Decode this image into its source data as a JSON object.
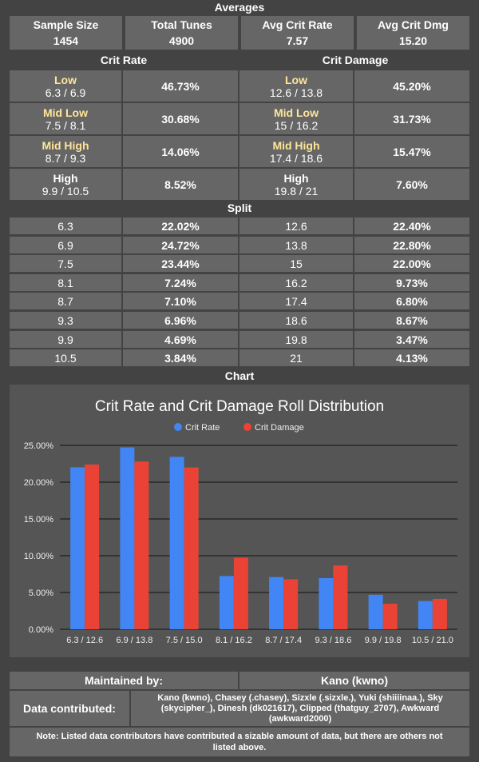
{
  "averages": {
    "title": "Averages",
    "headers": [
      "Sample Size",
      "Total Tunes",
      "Avg Crit Rate",
      "Avg Crit Dmg"
    ],
    "values": [
      "1454",
      "4900",
      "7.57",
      "15.20"
    ]
  },
  "tiers": {
    "cr_title": "Crit Rate",
    "cd_title": "Crit Damage",
    "rows": [
      {
        "name": "Low",
        "cr_range": "6.3 / 6.9",
        "cr_pct": "46.73%",
        "cd_range": "12.6 / 13.8",
        "cd_pct": "45.20%"
      },
      {
        "name": "Mid Low",
        "cr_range": "7.5 / 8.1",
        "cr_pct": "30.68%",
        "cd_range": "15 / 16.2",
        "cd_pct": "31.73%"
      },
      {
        "name": "Mid High",
        "cr_range": "8.7 / 9.3",
        "cr_pct": "14.06%",
        "cd_range": "17.4 / 18.6",
        "cd_pct": "15.47%"
      },
      {
        "name": "High",
        "cr_range": "9.9 / 10.5",
        "cr_pct": "8.52%",
        "cd_range": "19.8 / 21",
        "cd_pct": "7.60%"
      }
    ]
  },
  "split": {
    "title": "Split",
    "rows": [
      {
        "cr": "6.3",
        "cr_pct": "22.02%",
        "cd": "12.6",
        "cd_pct": "22.40%"
      },
      {
        "cr": "6.9",
        "cr_pct": "24.72%",
        "cd": "13.8",
        "cd_pct": "22.80%"
      },
      {
        "cr": "7.5",
        "cr_pct": "23.44%",
        "cd": "15",
        "cd_pct": "22.00%"
      },
      {
        "cr": "8.1",
        "cr_pct": "7.24%",
        "cd": "16.2",
        "cd_pct": "9.73%"
      },
      {
        "cr": "8.7",
        "cr_pct": "7.10%",
        "cd": "17.4",
        "cd_pct": "6.80%"
      },
      {
        "cr": "9.3",
        "cr_pct": "6.96%",
        "cd": "18.6",
        "cd_pct": "8.67%"
      },
      {
        "cr": "9.9",
        "cr_pct": "4.69%",
        "cd": "19.8",
        "cd_pct": "3.47%"
      },
      {
        "cr": "10.5",
        "cr_pct": "3.84%",
        "cd": "21",
        "cd_pct": "4.13%"
      }
    ]
  },
  "chart_section_title": "Chart",
  "chart_data": {
    "type": "bar",
    "title": "Crit Rate and Crit Damage Roll Distribution",
    "categories": [
      "6.3 / 12.6",
      "6.9 / 13.8",
      "7.5 / 15.0",
      "8.1 / 16.2",
      "8.7 / 17.4",
      "9.3 / 18.6",
      "9.9 / 19.8",
      "10.5 / 21.0"
    ],
    "series": [
      {
        "name": "Crit Rate",
        "color": "#4285f4",
        "values": [
          22.02,
          24.72,
          23.44,
          7.24,
          7.1,
          6.96,
          4.69,
          3.84
        ]
      },
      {
        "name": "Crit Damage",
        "color": "#ea4335",
        "values": [
          22.4,
          22.8,
          22.0,
          9.73,
          6.8,
          8.67,
          3.47,
          4.13
        ]
      }
    ],
    "yticks": [
      "0.00%",
      "5.00%",
      "10.00%",
      "15.00%",
      "20.00%",
      "25.00%"
    ],
    "ylim": [
      0,
      25
    ],
    "legend_position": "top",
    "grid": true
  },
  "footer": {
    "maintained_label": "Maintained by:",
    "maintained_value": "Kano (kwno)",
    "contributed_label": "Data contributed:",
    "contributed_value": "Kano (kwno), Chasey (.chasey), Sizxle (.sizxle.), Yuki (shiiiinaa.), Sky (skycipher_), Dinesh (dk021617), Clipped (thatguy_2707), Awkward (awkward2000)",
    "note": "Note: Listed data contributors have contributed a sizable amount of data, but there are others not listed above."
  },
  "colors": {
    "background": "#434343",
    "cell": "#666666",
    "chart_bg": "#555555",
    "tier_label": "#ffe599"
  }
}
